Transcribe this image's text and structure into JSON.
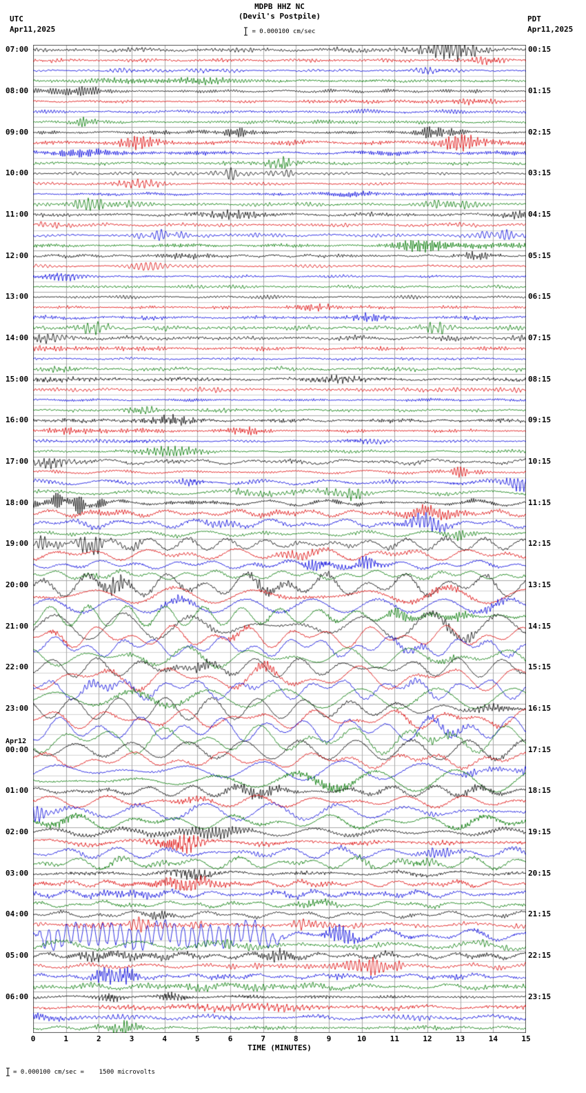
{
  "header": {
    "station_line": "MDPB HHZ NC",
    "location_line": "(Devil's Postpile)",
    "left_tz": "UTC",
    "left_date": "Apr11,2025",
    "right_tz": "PDT",
    "right_date": "Apr11,2025",
    "scale_text": "= 0.000100 cm/sec"
  },
  "footer": {
    "xlabel": "TIME (MINUTES)",
    "note_text": "= 0.000100 cm/sec =    1500 microvolts"
  },
  "chart_data": {
    "type": "line",
    "subtype": "helicorder-seismogram",
    "title": "MDPB HHZ NC (Devil's Postpile)",
    "x_range": [
      0,
      15
    ],
    "x_ticks": [
      "0",
      "1",
      "2",
      "3",
      "4",
      "5",
      "6",
      "7",
      "8",
      "9",
      "10",
      "11",
      "12",
      "13",
      "14",
      "15"
    ],
    "traces_per_hour": 4,
    "minutes_per_trace": 15,
    "trace_colors": [
      "#000000",
      "#dd0000",
      "#0000dd",
      "#007700"
    ],
    "left_labels": [
      {
        "date": "",
        "label": "07:00"
      },
      {
        "date": "",
        "label": "08:00"
      },
      {
        "date": "",
        "label": "09:00"
      },
      {
        "date": "",
        "label": "10:00"
      },
      {
        "date": "",
        "label": "11:00"
      },
      {
        "date": "",
        "label": "12:00"
      },
      {
        "date": "",
        "label": "13:00"
      },
      {
        "date": "",
        "label": "14:00"
      },
      {
        "date": "",
        "label": "15:00"
      },
      {
        "date": "",
        "label": "16:00"
      },
      {
        "date": "",
        "label": "17:00"
      },
      {
        "date": "",
        "label": "18:00"
      },
      {
        "date": "",
        "label": "19:00"
      },
      {
        "date": "",
        "label": "20:00"
      },
      {
        "date": "",
        "label": "21:00"
      },
      {
        "date": "",
        "label": "22:00"
      },
      {
        "date": "",
        "label": "23:00"
      },
      {
        "date": "Apr12",
        "label": "00:00"
      },
      {
        "date": "",
        "label": "01:00"
      },
      {
        "date": "",
        "label": "02:00"
      },
      {
        "date": "",
        "label": "03:00"
      },
      {
        "date": "",
        "label": "04:00"
      },
      {
        "date": "",
        "label": "05:00"
      },
      {
        "date": "",
        "label": "06:00"
      }
    ],
    "right_labels": [
      "00:15",
      "01:15",
      "02:15",
      "03:15",
      "04:15",
      "05:15",
      "06:15",
      "07:15",
      "08:15",
      "09:15",
      "10:15",
      "11:15",
      "12:15",
      "13:15",
      "14:15",
      "15:15",
      "16:15",
      "17:15",
      "18:15",
      "19:15",
      "20:15",
      "21:15",
      "22:15",
      "23:15"
    ],
    "hour_activity": [
      1.0,
      1.0,
      1.05,
      1.0,
      0.95,
      1.0,
      1.0,
      1.05,
      0.95,
      0.85,
      1.35,
      1.6,
      2.2,
      2.6,
      2.8,
      3.0,
      3.0,
      2.7,
      2.3,
      2.05,
      1.6,
      1.8,
      1.45,
      1.2
    ],
    "special_events": [
      {
        "utc_hour": "04:00",
        "trace_color": "blue",
        "description": "large monochromatic oscillation burst, minutes 0-8 of the 04:30 UTC segment"
      }
    ],
    "grid": true,
    "legend_position": "none"
  }
}
